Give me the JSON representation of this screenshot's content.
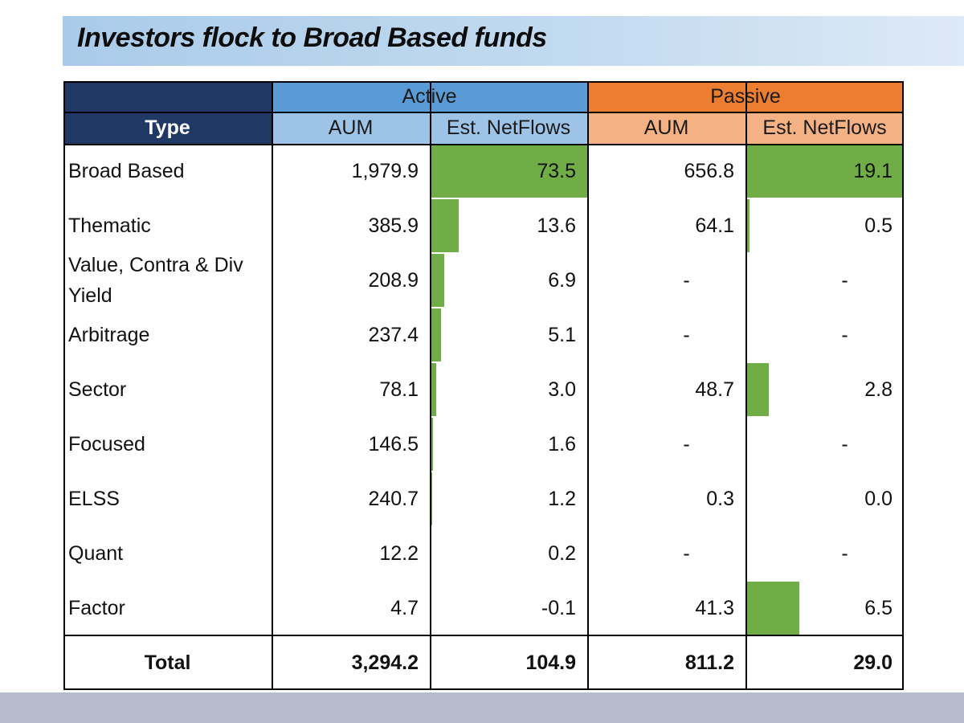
{
  "title": "Investors flock to Broad Based funds",
  "colors": {
    "header_dark": "#1f3864",
    "active": "#5b9bd5",
    "active_sub": "#9dc3e6",
    "passive": "#ed7d31",
    "passive_sub": "#f4b183",
    "bar": "#70ad47"
  },
  "headers": {
    "type": "Type",
    "active": "Active",
    "passive": "Passive",
    "aum": "AUM",
    "netflows": "Est. NetFlows"
  },
  "chart_data": {
    "type": "table",
    "title": "Investors flock to Broad Based funds",
    "columns": [
      "Type",
      "Active AUM",
      "Active Est. NetFlows",
      "Passive AUM",
      "Passive Est. NetFlows"
    ],
    "rows": [
      {
        "type": "Broad Based",
        "active_aum": "1,979.9",
        "active_netflows": "73.5",
        "passive_aum": "656.8",
        "passive_netflows": "19.1"
      },
      {
        "type": "Thematic",
        "active_aum": "385.9",
        "active_netflows": "13.6",
        "passive_aum": "64.1",
        "passive_netflows": "0.5"
      },
      {
        "type": "Value, Contra & Div Yield",
        "active_aum": "208.9",
        "active_netflows": "6.9",
        "passive_aum": "-",
        "passive_netflows": "-"
      },
      {
        "type": "Arbitrage",
        "active_aum": "237.4",
        "active_netflows": "5.1",
        "passive_aum": "-",
        "passive_netflows": "-"
      },
      {
        "type": "Sector",
        "active_aum": "78.1",
        "active_netflows": "3.0",
        "passive_aum": "48.7",
        "passive_netflows": "2.8"
      },
      {
        "type": "Focused",
        "active_aum": "146.5",
        "active_netflows": "1.6",
        "passive_aum": "-",
        "passive_netflows": "-"
      },
      {
        "type": "ELSS",
        "active_aum": "240.7",
        "active_netflows": "1.2",
        "passive_aum": "0.3",
        "passive_netflows": "0.0"
      },
      {
        "type": "Quant",
        "active_aum": "12.2",
        "active_netflows": "0.2",
        "passive_aum": "-",
        "passive_netflows": "-"
      },
      {
        "type": "Factor",
        "active_aum": "4.7",
        "active_netflows": "-0.1",
        "passive_aum": "41.3",
        "passive_netflows": "6.5"
      }
    ],
    "total": {
      "type": "Total",
      "active_aum": "3,294.2",
      "active_netflows": "104.9",
      "passive_aum": "811.2",
      "passive_netflows": "29.0"
    },
    "bars": {
      "active_netflows": [
        73.5,
        13.6,
        6.9,
        5.1,
        3.0,
        1.6,
        1.2,
        0.2,
        -0.1
      ],
      "passive_netflows": [
        19.1,
        0.5,
        0,
        0,
        2.8,
        0,
        0.0,
        0,
        6.5
      ]
    }
  }
}
